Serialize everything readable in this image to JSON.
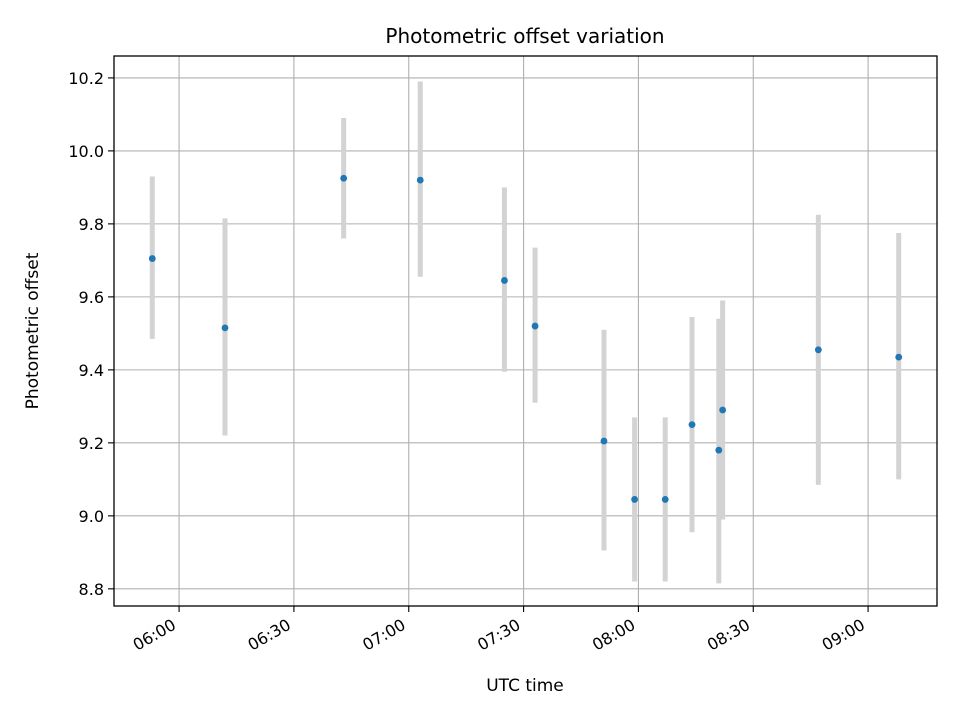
{
  "chart_data": {
    "type": "scatter",
    "title": "Photometric offset variation",
    "xlabel": "UTC time",
    "ylabel": "Photometric offset",
    "x_tick_labels": [
      "06:00",
      "06:30",
      "07:00",
      "07:30",
      "08:00",
      "08:30",
      "09:00"
    ],
    "x_ticks": [
      "06:00",
      "06:30",
      "07:00",
      "07:30",
      "08:00",
      "08:30",
      "09:00"
    ],
    "y_tick_labels": [
      "8.8",
      "9.0",
      "9.2",
      "9.4",
      "9.6",
      "9.8",
      "10.0",
      "10.2"
    ],
    "y_ticks": [
      8.8,
      9.0,
      9.2,
      9.4,
      9.6,
      9.8,
      10.0,
      10.2
    ],
    "xlim": [
      "05:43",
      "09:18"
    ],
    "ylim": [
      8.753,
      10.26
    ],
    "grid": true,
    "marker_color": "#1f77b4",
    "errorbar_color": "#d3d3d3",
    "points": [
      {
        "x": "05:53",
        "y": 9.705,
        "ylow": 9.485,
        "yhigh": 9.93
      },
      {
        "x": "06:12",
        "y": 9.515,
        "ylow": 9.22,
        "yhigh": 9.815
      },
      {
        "x": "06:43",
        "y": 9.925,
        "ylow": 9.76,
        "yhigh": 10.09
      },
      {
        "x": "07:03",
        "y": 9.92,
        "ylow": 9.655,
        "yhigh": 10.19
      },
      {
        "x": "07:25",
        "y": 9.645,
        "ylow": 9.395,
        "yhigh": 9.9
      },
      {
        "x": "07:33",
        "y": 9.52,
        "ylow": 9.31,
        "yhigh": 9.735
      },
      {
        "x": "07:51",
        "y": 9.205,
        "ylow": 8.905,
        "yhigh": 9.51
      },
      {
        "x": "07:59",
        "y": 9.045,
        "ylow": 8.82,
        "yhigh": 9.27
      },
      {
        "x": "08:07",
        "y": 9.045,
        "ylow": 8.82,
        "yhigh": 9.27
      },
      {
        "x": "08:14",
        "y": 9.25,
        "ylow": 8.955,
        "yhigh": 9.545
      },
      {
        "x": "08:21",
        "y": 9.18,
        "ylow": 8.815,
        "yhigh": 9.54
      },
      {
        "x": "08:22",
        "y": 9.29,
        "ylow": 8.99,
        "yhigh": 9.59
      },
      {
        "x": "08:47",
        "y": 9.455,
        "ylow": 9.085,
        "yhigh": 9.825
      },
      {
        "x": "09:08",
        "y": 9.435,
        "ylow": 9.1,
        "yhigh": 9.775
      }
    ]
  }
}
